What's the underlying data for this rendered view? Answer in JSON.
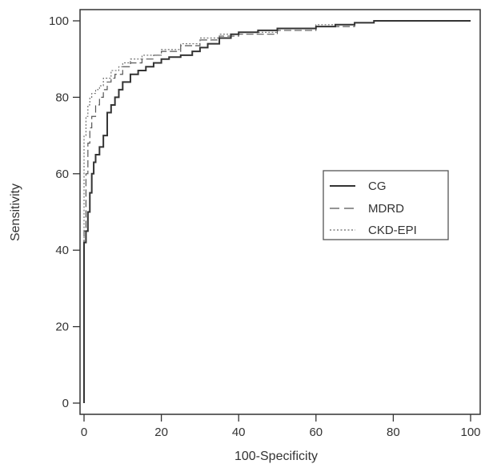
{
  "chart_data": {
    "type": "line",
    "title": "",
    "xlabel": "100-Specificity",
    "ylabel": "Sensitivity",
    "xlim": [
      0,
      100
    ],
    "ylim": [
      0,
      100
    ],
    "xticks": [
      "0",
      "20",
      "40",
      "60",
      "80",
      "100"
    ],
    "yticks": [
      "0",
      "20",
      "40",
      "60",
      "80",
      "100"
    ],
    "grid": false,
    "legend_position": "right-middle",
    "series": [
      {
        "name": "CG",
        "style": "solid",
        "color": "#333333",
        "x": [
          0,
          0,
          0.5,
          1,
          1.5,
          2,
          2.5,
          3,
          4,
          5,
          6,
          7,
          8,
          9,
          10,
          12,
          14,
          16,
          18,
          20,
          22,
          25,
          28,
          30,
          32,
          35,
          38,
          40,
          45,
          50,
          55,
          60,
          65,
          70,
          75,
          80,
          100
        ],
        "y": [
          0,
          42,
          45,
          50,
          55,
          60,
          63,
          65,
          67,
          70,
          76,
          78,
          80,
          82,
          84,
          86,
          87,
          88,
          89,
          90,
          90.5,
          91,
          92,
          93,
          94,
          95.5,
          96.5,
          97,
          97.5,
          98,
          98,
          98.5,
          99,
          99.5,
          100,
          100,
          100
        ]
      },
      {
        "name": "MDRD",
        "style": "dashed",
        "color": "#555555",
        "x": [
          0,
          0,
          0.5,
          1,
          1.5,
          2,
          3,
          4,
          5,
          6,
          7,
          8,
          10,
          12,
          15,
          18,
          20,
          25,
          30,
          35,
          40,
          50,
          60,
          70,
          75,
          80,
          100
        ],
        "y": [
          0,
          45,
          60,
          68,
          72,
          75,
          78,
          80,
          82,
          84,
          85,
          86,
          88,
          89,
          90,
          91,
          92,
          93.5,
          95,
          96,
          96.5,
          97.5,
          98.5,
          99.5,
          100,
          100,
          100
        ]
      },
      {
        "name": "CKD-EPI",
        "style": "dotted",
        "color": "#666666",
        "x": [
          0,
          0,
          0.5,
          1,
          1.5,
          2,
          3,
          4,
          5,
          7,
          9,
          10,
          12,
          15,
          20,
          25,
          30,
          35,
          40,
          50,
          60,
          70,
          75,
          80,
          100
        ],
        "y": [
          0,
          70,
          75,
          78,
          80,
          81,
          82,
          83,
          85,
          87,
          88,
          89,
          90,
          91,
          92.5,
          94,
          95.5,
          96.5,
          97,
          98,
          99,
          99.5,
          100,
          100,
          100
        ]
      }
    ]
  }
}
